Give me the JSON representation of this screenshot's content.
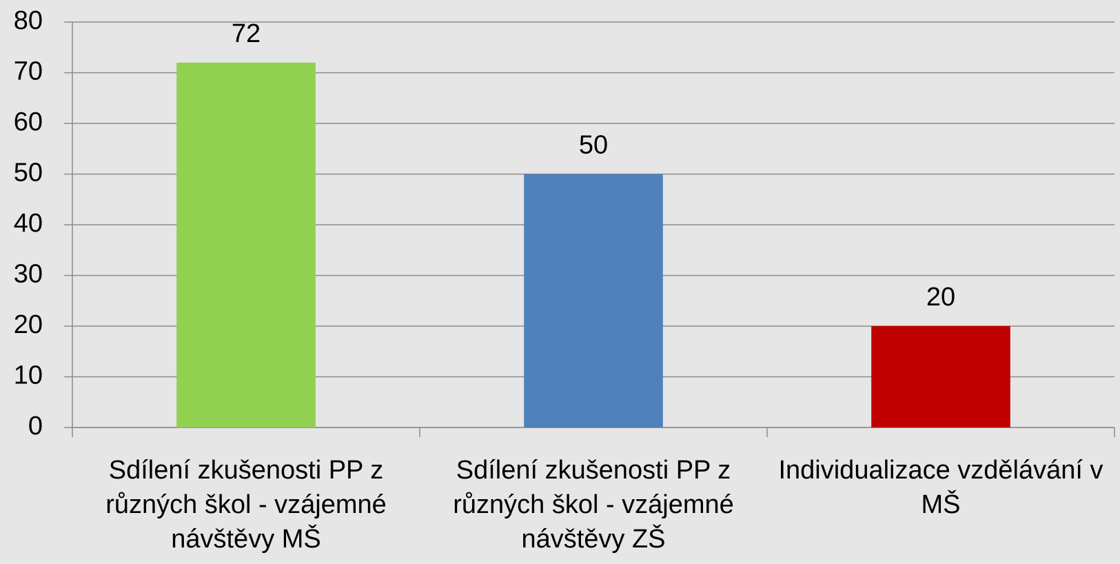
{
  "chart_data": {
    "type": "bar",
    "categories": [
      "Sdílení zkušenosti PP z různých škol - vzájemné návštěvy MŠ",
      "Sdílení zkušenosti PP z různých škol - vzájemné návštěvy ZŠ",
      "Individualizace vzdělávání v MŠ"
    ],
    "values": [
      72,
      50,
      20
    ],
    "colors": [
      "#92d050",
      "#4f81bd",
      "#c00000"
    ],
    "ylim": [
      0,
      80
    ],
    "yticks": [
      0,
      10,
      20,
      30,
      40,
      50,
      60,
      70,
      80
    ],
    "grid": true
  }
}
